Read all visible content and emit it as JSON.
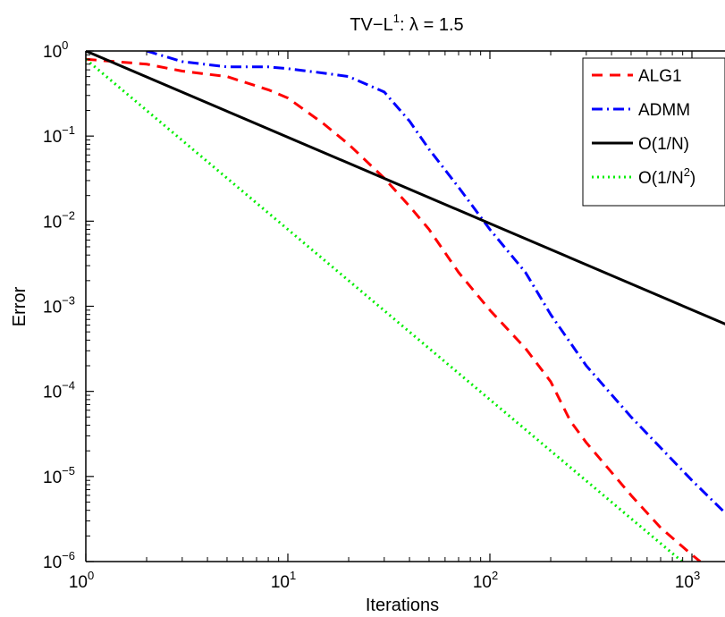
{
  "chart_data": {
    "type": "line",
    "title": {
      "prefix": "TV−L",
      "superscript": "1",
      "suffix": ": λ = 1.5"
    },
    "xlabel": "Iterations",
    "ylabel": "Error",
    "x_scale": "log",
    "y_scale": "log",
    "xlim": [
      1,
      2000
    ],
    "ylim": [
      1e-06,
      1
    ],
    "grid": false,
    "legend_position": "top-right",
    "x_ticks": [
      {
        "value": 1,
        "base": "10",
        "exp": "0"
      },
      {
        "value": 10,
        "base": "10",
        "exp": "1"
      },
      {
        "value": 100,
        "base": "10",
        "exp": "2"
      },
      {
        "value": 1000,
        "base": "10",
        "exp": "3"
      }
    ],
    "y_ticks": [
      {
        "value": 1,
        "base": "10",
        "exp": "0"
      },
      {
        "value": 0.1,
        "base": "10",
        "exp": "−1"
      },
      {
        "value": 0.01,
        "base": "10",
        "exp": "−2"
      },
      {
        "value": 0.001,
        "base": "10",
        "exp": "−3"
      },
      {
        "value": 0.0001,
        "base": "10",
        "exp": "−4"
      },
      {
        "value": 1e-05,
        "base": "10",
        "exp": "−5"
      },
      {
        "value": 1e-06,
        "base": "10",
        "exp": "−6"
      }
    ],
    "series": [
      {
        "key": "alg1",
        "label": {
          "text": "ALG1",
          "sup": "",
          "after": ""
        },
        "color": "#ff0000",
        "dash": "12,8",
        "points": [
          [
            1,
            0.8
          ],
          [
            2,
            0.7
          ],
          [
            3,
            0.58
          ],
          [
            5,
            0.5
          ],
          [
            8,
            0.35
          ],
          [
            10,
            0.28
          ],
          [
            15,
            0.14
          ],
          [
            20,
            0.08
          ],
          [
            30,
            0.032
          ],
          [
            40,
            0.015
          ],
          [
            50,
            0.008
          ],
          [
            70,
            0.0025
          ],
          [
            100,
            0.0009
          ],
          [
            150,
            0.00032
          ],
          [
            200,
            0.00013
          ],
          [
            250,
            4.5e-05
          ],
          [
            300,
            2.5e-05
          ],
          [
            500,
            6e-06
          ],
          [
            700,
            2.5e-06
          ],
          [
            1000,
            1.2e-06
          ],
          [
            1100,
            1e-06
          ]
        ]
      },
      {
        "key": "admm",
        "label": {
          "text": "ADMM",
          "sup": "",
          "after": ""
        },
        "color": "#0000ff",
        "dash": "12,5,2,5",
        "points": [
          [
            2,
            1
          ],
          [
            3,
            0.75
          ],
          [
            5,
            0.65
          ],
          [
            8,
            0.65
          ],
          [
            10,
            0.62
          ],
          [
            15,
            0.55
          ],
          [
            20,
            0.5
          ],
          [
            30,
            0.33
          ],
          [
            40,
            0.15
          ],
          [
            50,
            0.07
          ],
          [
            70,
            0.025
          ],
          [
            100,
            0.008
          ],
          [
            150,
            0.0025
          ],
          [
            200,
            0.0008
          ],
          [
            300,
            0.0002
          ],
          [
            500,
            5e-05
          ],
          [
            1000,
            9e-06
          ],
          [
            1500,
            3.5e-06
          ],
          [
            2000,
            1.5e-06
          ]
        ]
      },
      {
        "key": "o1n",
        "label": {
          "text": "O(1/N)",
          "sup": "",
          "after": ""
        },
        "color": "#000000",
        "dash": "",
        "points": [
          [
            1,
            1
          ],
          [
            2000,
            0.00045
          ]
        ]
      },
      {
        "key": "o1n2",
        "label": {
          "text": "O(1/N",
          "sup": "2",
          "after": ")"
        },
        "color": "#00ee00",
        "dash": "2,4",
        "points": [
          [
            1,
            0.8
          ],
          [
            1000,
            8e-07
          ],
          [
            1050,
            7e-07
          ]
        ]
      }
    ]
  }
}
